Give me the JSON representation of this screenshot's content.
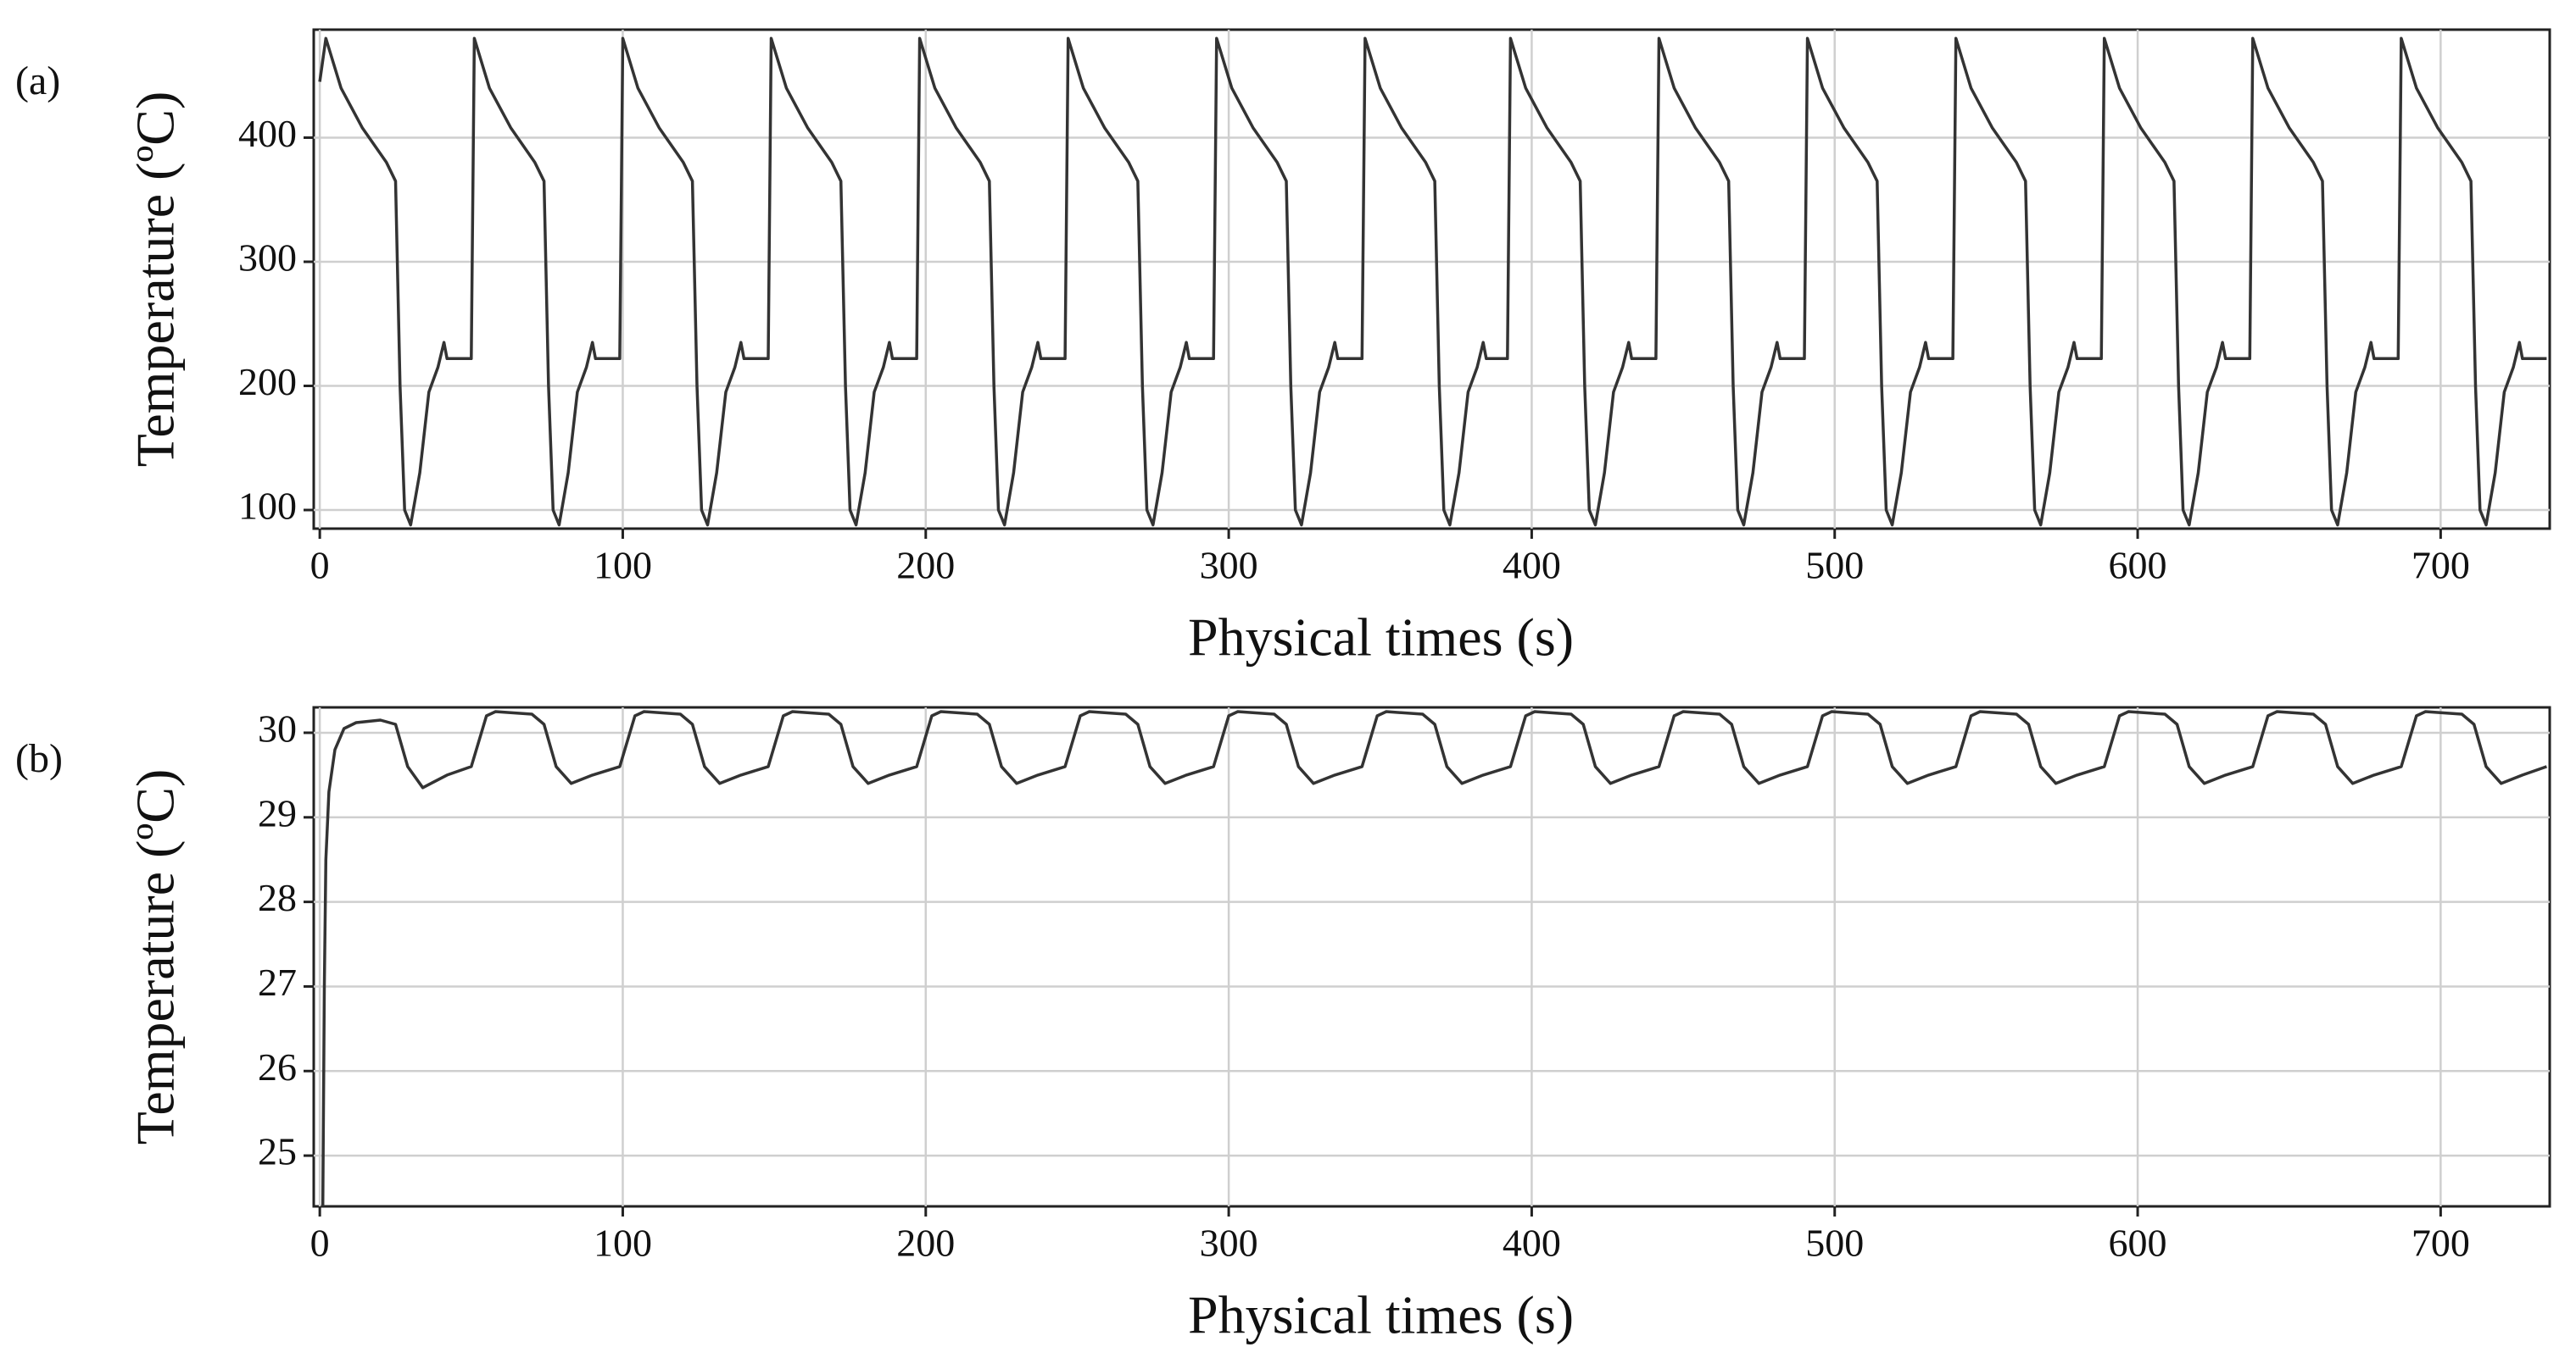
{
  "chart_data": [
    {
      "type": "line",
      "panel_label": "(a)",
      "ylabel": "Temperature (ºC)",
      "xlabel": "Physical times (s)",
      "xlim": [
        -2,
        736
      ],
      "ylim": [
        85,
        487
      ],
      "xticks": [
        0,
        100,
        200,
        300,
        400,
        500,
        600,
        700
      ],
      "yticks": [
        100,
        200,
        300,
        400
      ],
      "grid": true,
      "x": [
        0,
        2,
        7,
        14,
        22,
        25,
        26.5,
        28,
        30,
        33,
        36,
        39,
        41,
        42,
        50,
        51,
        56,
        63,
        71,
        74,
        75.5,
        77,
        79,
        82,
        85,
        88,
        90,
        91,
        99,
        100,
        105,
        112,
        120,
        123,
        124.5,
        126,
        128,
        131,
        134,
        137,
        139,
        140,
        148,
        149,
        154,
        161,
        169,
        172,
        173.5,
        175,
        177,
        180,
        183,
        186,
        188,
        189,
        197,
        198,
        203,
        210,
        218,
        221,
        222.5,
        224,
        226,
        229,
        232,
        235,
        237,
        238,
        246,
        247,
        252,
        259,
        267,
        270,
        271.5,
        273,
        275,
        278,
        281,
        284,
        286,
        287,
        295,
        296,
        301,
        308,
        316,
        319,
        320.5,
        322,
        324,
        327,
        330,
        333,
        335,
        336,
        344,
        345,
        350,
        357,
        365,
        368,
        369.5,
        371,
        373,
        376,
        379,
        382,
        384,
        385,
        392,
        393,
        398,
        405,
        413,
        416,
        417.5,
        419,
        421,
        424,
        427,
        430,
        432,
        433,
        441,
        442,
        447,
        454,
        462,
        465,
        466.5,
        468,
        470,
        473,
        476,
        479,
        481,
        482,
        490,
        491,
        496,
        503,
        511,
        514,
        515.5,
        517,
        519,
        522,
        525,
        528,
        530,
        531,
        539,
        540,
        545,
        552,
        560,
        563,
        564.5,
        566,
        568,
        571,
        574,
        577,
        579,
        580,
        588,
        589,
        594,
        601,
        609,
        612,
        613.5,
        615,
        617,
        620,
        623,
        626,
        628,
        629,
        637,
        638,
        643,
        650,
        658,
        661,
        662.5,
        664,
        666,
        669,
        672,
        675,
        677,
        678,
        686,
        687,
        692,
        699,
        707,
        710,
        711.5,
        713,
        715,
        718,
        721,
        724,
        726,
        727,
        735
      ],
      "series": [
        {
          "color": "#333333",
          "values": [
            445,
            480,
            440,
            408,
            380,
            365,
            200,
            100,
            88,
            130,
            195,
            215,
            235,
            222,
            222,
            480,
            440,
            408,
            380,
            365,
            200,
            100,
            88,
            130,
            195,
            215,
            235,
            222,
            222,
            480,
            440,
            408,
            380,
            365,
            200,
            100,
            88,
            130,
            195,
            215,
            235,
            222,
            222,
            480,
            440,
            408,
            380,
            365,
            200,
            100,
            88,
            130,
            195,
            215,
            235,
            222,
            222,
            480,
            440,
            408,
            380,
            365,
            200,
            100,
            88,
            130,
            195,
            215,
            235,
            222,
            222,
            480,
            440,
            408,
            380,
            365,
            200,
            100,
            88,
            130,
            195,
            215,
            235,
            222,
            222,
            480,
            440,
            408,
            380,
            365,
            200,
            100,
            88,
            130,
            195,
            215,
            235,
            222,
            222,
            480,
            440,
            408,
            380,
            365,
            200,
            100,
            88,
            130,
            195,
            215,
            235,
            222,
            222,
            480,
            440,
            408,
            380,
            365,
            200,
            100,
            88,
            130,
            195,
            215,
            235,
            222,
            222,
            480,
            440,
            408,
            380,
            365,
            200,
            100,
            88,
            130,
            195,
            215,
            235,
            222,
            222,
            480,
            440,
            408,
            380,
            365,
            200,
            100,
            88,
            130,
            195,
            215,
            235,
            222,
            222,
            480,
            440,
            408,
            380,
            365,
            200,
            100,
            88,
            130,
            195,
            215,
            235,
            222,
            222,
            480,
            440,
            408,
            380,
            365,
            200,
            100,
            88,
            130,
            195,
            215,
            235,
            222,
            222,
            480,
            440,
            408,
            380,
            365,
            200,
            100,
            88,
            130,
            195,
            215,
            235,
            222,
            222,
            480,
            440,
            408,
            380,
            365,
            200,
            100,
            88,
            130,
            195,
            215,
            235,
            222,
            222
          ]
        }
      ]
    },
    {
      "type": "line",
      "panel_label": "(b)",
      "ylabel": "Temperature (ºC)",
      "xlabel": "Physical times (s)",
      "xlim": [
        -2,
        736
      ],
      "ylim": [
        24.4,
        30.3
      ],
      "xticks": [
        0,
        100,
        200,
        300,
        400,
        500,
        600,
        700
      ],
      "yticks": [
        25,
        26,
        27,
        28,
        29,
        30
      ],
      "grid": true,
      "x": [
        1,
        1.5,
        2,
        3,
        5,
        8,
        12,
        20,
        25,
        29,
        34,
        42,
        50,
        55,
        58,
        70,
        74,
        78,
        83,
        90,
        99,
        104,
        107,
        119,
        123,
        127,
        132,
        139,
        148,
        153,
        156,
        168,
        172,
        176,
        181,
        188,
        197,
        202,
        205,
        217,
        221,
        225,
        230,
        237,
        246,
        251,
        254,
        266,
        270,
        274,
        279,
        286,
        295,
        300,
        303,
        315,
        319,
        323,
        328,
        335,
        344,
        349,
        352,
        364,
        368,
        372,
        377,
        384,
        393,
        398,
        401,
        413,
        417,
        421,
        426,
        433,
        442,
        447,
        450,
        462,
        466,
        470,
        475,
        482,
        491,
        496,
        499,
        511,
        515,
        519,
        524,
        531,
        540,
        545,
        548,
        560,
        564,
        568,
        573,
        580,
        589,
        594,
        597,
        609,
        613,
        617,
        622,
        629,
        638,
        643,
        646,
        658,
        662,
        666,
        671,
        678,
        687,
        692,
        695,
        707,
        711,
        715,
        720,
        727,
        735
      ],
      "series": [
        {
          "color": "#333333",
          "values": [
            24.4,
            27,
            28.5,
            29.3,
            29.8,
            30.05,
            30.12,
            30.15,
            30.1,
            29.6,
            29.35,
            29.5,
            29.6,
            30.2,
            30.25,
            30.22,
            30.1,
            29.6,
            29.4,
            29.5,
            29.6,
            30.2,
            30.25,
            30.22,
            30.1,
            29.6,
            29.4,
            29.5,
            29.6,
            30.2,
            30.25,
            30.22,
            30.1,
            29.6,
            29.4,
            29.5,
            29.6,
            30.2,
            30.25,
            30.22,
            30.1,
            29.6,
            29.4,
            29.5,
            29.6,
            30.2,
            30.25,
            30.22,
            30.1,
            29.6,
            29.4,
            29.5,
            29.6,
            30.2,
            30.25,
            30.22,
            30.1,
            29.6,
            29.4,
            29.5,
            29.6,
            30.2,
            30.25,
            30.22,
            30.1,
            29.6,
            29.4,
            29.5,
            29.6,
            30.2,
            30.25,
            30.22,
            30.1,
            29.6,
            29.4,
            29.5,
            29.6,
            30.2,
            30.25,
            30.22,
            30.1,
            29.6,
            29.4,
            29.5,
            29.6,
            30.2,
            30.25,
            30.22,
            30.1,
            29.6,
            29.4,
            29.5,
            29.6,
            30.2,
            30.25,
            30.22,
            30.1,
            29.6,
            29.4,
            29.5,
            29.6,
            30.2,
            30.25,
            30.22,
            30.1,
            29.6,
            29.4,
            29.5,
            29.6,
            30.2,
            30.25,
            30.22,
            30.1,
            29.6,
            29.4,
            29.5,
            29.6,
            30.2,
            30.25,
            30.22,
            30.1,
            29.6,
            29.4,
            29.5,
            29.6
          ]
        }
      ]
    }
  ]
}
